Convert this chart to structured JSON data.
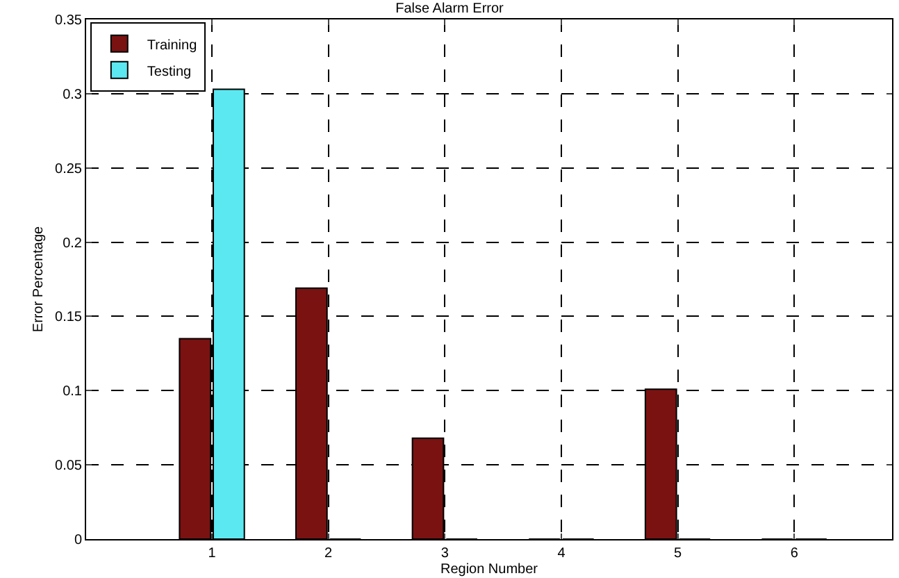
{
  "chart_data": {
    "type": "bar",
    "title": "False Alarm Error",
    "xlabel": "Region Number",
    "ylabel": "Error Percentage",
    "x": [
      1,
      2,
      3,
      4,
      5,
      6
    ],
    "series": [
      {
        "name": "Training",
        "color": "#7a1212",
        "values": [
          0.135,
          0.169,
          0.068,
          0,
          0.101,
          0
        ]
      },
      {
        "name": "Testing",
        "color": "#5ce8f0",
        "values": [
          0.303,
          0,
          0,
          0,
          0,
          0
        ]
      }
    ],
    "xlim": [
      -0.08,
      6.84
    ],
    "xticks": [
      1,
      2,
      3,
      4,
      5,
      6
    ],
    "ylim": [
      0,
      0.35
    ],
    "yticks": [
      0,
      0.05,
      0.1,
      0.15,
      0.2,
      0.25,
      0.3,
      0.35
    ],
    "grid": true,
    "legend": "top left"
  }
}
